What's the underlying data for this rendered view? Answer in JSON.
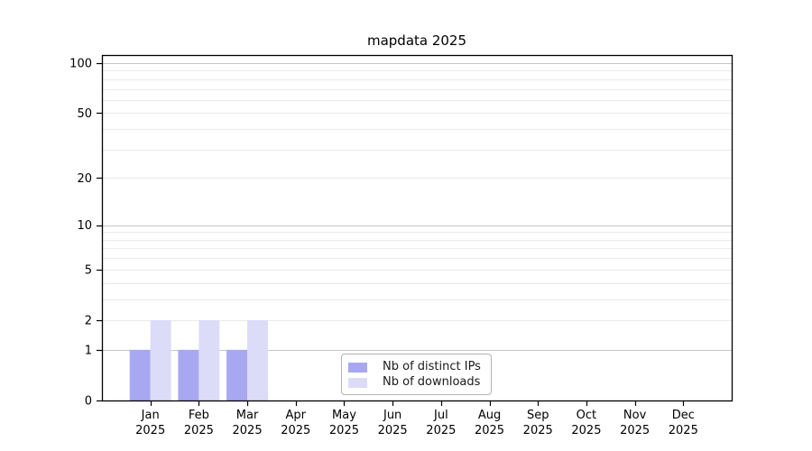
{
  "chart_data": {
    "type": "bar",
    "title": "mapdata 2025",
    "categories": [
      "Jan",
      "Feb",
      "Mar",
      "Apr",
      "May",
      "Jun",
      "Jul",
      "Aug",
      "Sep",
      "Oct",
      "Nov",
      "Dec"
    ],
    "category_year": "2025",
    "series": [
      {
        "name": "Nb of distinct IPs",
        "color": "#a8a8f2",
        "values": [
          1,
          1,
          1,
          0,
          0,
          0,
          0,
          0,
          0,
          0,
          0,
          0
        ]
      },
      {
        "name": "Nb of downloads",
        "color": "#dcdcf8",
        "values": [
          2,
          2,
          2,
          0,
          0,
          0,
          0,
          0,
          0,
          0,
          0,
          0
        ]
      }
    ],
    "xlabel": "",
    "ylabel": "",
    "yscale": "log1p",
    "ylim": [
      0,
      113
    ],
    "y_tick_values": [
      0,
      1,
      2,
      5,
      10,
      20,
      50,
      100
    ],
    "y_tick_labels": [
      "0",
      "1",
      "2",
      "5",
      "10",
      "20",
      "50",
      "100"
    ],
    "y_major_gridlines": [
      1,
      10,
      100
    ],
    "y_minor_gridlines": [
      2,
      3,
      4,
      5,
      6,
      7,
      8,
      9,
      20,
      30,
      40,
      50,
      60,
      70,
      80,
      90
    ],
    "grid": true,
    "legend_position": "lower center inside"
  },
  "colors": {
    "background": "#ffffff",
    "axis_frame": "#000000",
    "tick": "#000000",
    "text": "#000000",
    "major_grid": "#c6c6c6",
    "minor_grid": "#eaeaea",
    "legend_border": "#b3b3b3"
  }
}
